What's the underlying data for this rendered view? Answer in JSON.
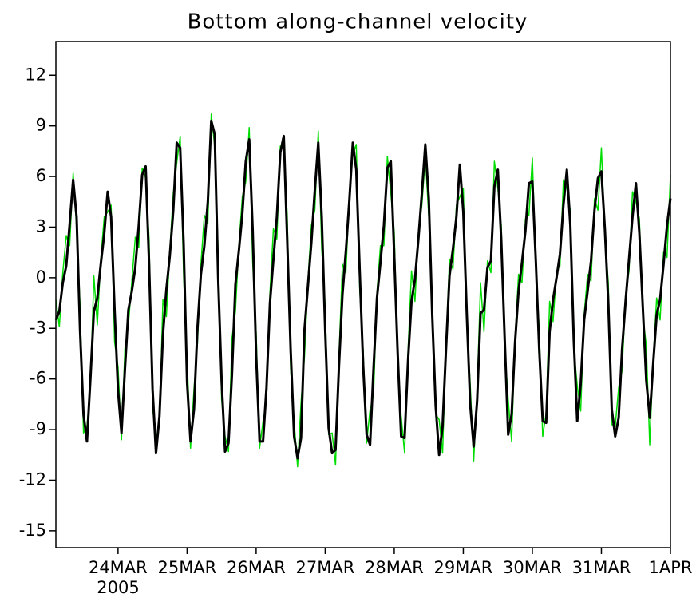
{
  "chart_data": {
    "type": "line",
    "title": "Bottom along-channel velocity",
    "x": [
      23.1,
      23.15,
      23.2,
      23.25,
      23.3,
      23.35,
      23.4,
      23.45,
      23.5,
      23.55,
      23.6,
      23.65,
      23.7,
      23.75,
      23.8,
      23.85,
      23.9,
      23.95,
      24.0,
      24.05,
      24.1,
      24.15,
      24.2,
      24.25,
      24.3,
      24.35,
      24.4,
      24.45,
      24.5,
      24.55,
      24.6,
      24.65,
      24.7,
      24.75,
      24.8,
      24.85,
      24.9,
      24.95,
      25.0,
      25.05,
      25.1,
      25.15,
      25.2,
      25.25,
      25.3,
      25.35,
      25.4,
      25.45,
      25.5,
      25.55,
      25.6,
      25.65,
      25.7,
      25.75,
      25.8,
      25.85,
      25.9,
      25.95,
      26.0,
      26.05,
      26.1,
      26.15,
      26.2,
      26.25,
      26.3,
      26.35,
      26.4,
      26.45,
      26.5,
      26.55,
      26.6,
      26.65,
      26.7,
      26.75,
      26.8,
      26.85,
      26.9,
      26.95,
      27.0,
      27.05,
      27.1,
      27.15,
      27.2,
      27.25,
      27.3,
      27.35,
      27.4,
      27.45,
      27.5,
      27.55,
      27.6,
      27.65,
      27.7,
      27.75,
      27.8,
      27.85,
      27.9,
      27.95,
      28.0,
      28.05,
      28.1,
      28.15,
      28.2,
      28.25,
      28.3,
      28.35,
      28.4,
      28.45,
      28.5,
      28.55,
      28.6,
      28.65,
      28.7,
      28.75,
      28.8,
      28.85,
      28.9,
      28.95,
      29.0,
      29.05,
      29.1,
      29.15,
      29.2,
      29.25,
      29.3,
      29.35,
      29.4,
      29.45,
      29.5,
      29.55,
      29.6,
      29.65,
      29.7,
      29.75,
      29.8,
      29.85,
      29.9,
      29.95,
      30.0,
      30.05,
      30.1,
      30.15,
      30.2,
      30.25,
      30.3,
      30.35,
      30.4,
      30.45,
      30.5,
      30.55,
      30.6,
      30.65,
      30.7,
      30.75,
      30.8,
      30.85,
      30.9,
      30.95,
      31.0,
      31.05,
      31.1,
      31.15,
      31.2,
      31.25,
      31.3,
      31.35,
      31.4,
      31.45,
      31.5,
      31.55,
      31.6,
      31.65,
      31.7,
      31.75,
      31.8,
      31.85,
      31.9,
      31.95,
      32.0
    ],
    "series": [
      {
        "color": "#00dd00",
        "values": [
          -1.3,
          -2.9,
          0.3,
          2.5,
          1.9,
          6.2,
          2.9,
          -1.6,
          -9.2,
          -8.8,
          -6.5,
          0.1,
          -2.8,
          1.1,
          3.6,
          3.9,
          4.3,
          -3.8,
          -5.3,
          -9.6,
          -4.2,
          -2.8,
          -0.2,
          2.4,
          1.8,
          6.5,
          5.9,
          2.3,
          -7.7,
          -9.5,
          -8.7,
          -1.3,
          -2.3,
          1.6,
          5,
          6.8,
          8.4,
          0.1,
          -4.8,
          -10.1,
          -6.6,
          -3.9,
          0.8,
          3.7,
          3.2,
          9.7,
          7.8,
          1.5,
          -7.2,
          -9.4,
          -10.3,
          -3.6,
          -2,
          1.9,
          4.8,
          5.7,
          8.9,
          0.9,
          -3.2,
          -10.1,
          -8.5,
          -7.4,
          -0.9,
          2.9,
          2.3,
          7.8,
          7.7,
          3.7,
          -5.4,
          -8.5,
          -11.2,
          -7.4,
          -4.7,
          -0.2,
          3.1,
          4,
          8.7,
          1.7,
          -1.7,
          -9.3,
          -9.2,
          -11.1,
          -4.6,
          0.8,
          0.3,
          5,
          7.3,
          7.9,
          -0.7,
          -4.3,
          -9.8,
          -7.8,
          -7,
          -0.9,
          1.9,
          1.9,
          7.2,
          5,
          2.7,
          -4.9,
          -8.2,
          -10.4,
          -4.3,
          0.4,
          -1.4,
          2.7,
          4.3,
          7.2,
          3.6,
          -1.3,
          -8.1,
          -8.4,
          -10.4,
          -3.9,
          1.1,
          0.5,
          4.3,
          4.8,
          5.3,
          -2.5,
          -6.3,
          -10.9,
          -6.7,
          -0.3,
          -3.2,
          1,
          0.3,
          6.9,
          5.3,
          3.1,
          -4.2,
          -7.2,
          -9.7,
          -3.5,
          0.2,
          -0.3,
          3.5,
          3.7,
          7.1,
          0.6,
          -3.1,
          -9.4,
          -8,
          -1.4,
          -2.6,
          0.4,
          0.7,
          5.8,
          5.3,
          4,
          -4.2,
          -6.4,
          -7.9,
          -2.2,
          0.2,
          -0.2,
          4.7,
          4,
          7.7,
          2.5,
          -0.3,
          -8.7,
          -8.8,
          -6.5,
          -5.5,
          -1,
          0.4,
          5.1,
          4.5,
          3.5,
          -2.3,
          -4,
          -9.9,
          -4.8,
          -1.2,
          -2.5,
          1.5,
          1.2,
          6.1
        ]
      },
      {
        "color": "#000000",
        "values": [
          -2.5,
          -2.0,
          -0.3,
          0.7,
          3.2,
          5.8,
          3.6,
          -3.1,
          -8.1,
          -9.7,
          -6,
          -2,
          -1.2,
          0.8,
          2.6,
          5.1,
          3.6,
          -1.9,
          -6.7,
          -9.2,
          -5.4,
          -1.9,
          -0.8,
          0.6,
          3.1,
          6.1,
          6.6,
          0.8,
          -6.6,
          -10.4,
          -8.2,
          -3.4,
          -0.7,
          1.3,
          4,
          8,
          7.7,
          2,
          -6.2,
          -9.7,
          -7.8,
          -3,
          0.2,
          1.9,
          4.5,
          9.3,
          8.5,
          0,
          -6.1,
          -10.3,
          -9.8,
          -5.7,
          -0.4,
          1.6,
          3.8,
          6.9,
          8.2,
          2.8,
          -4.6,
          -9.7,
          -9.7,
          -6.5,
          -1.5,
          1.1,
          3.6,
          7.4,
          8.4,
          2.2,
          -4.3,
          -9.4,
          -10.7,
          -9.5,
          -3.1,
          -0.5,
          2.1,
          5.2,
          8,
          3.6,
          -3.1,
          -8.9,
          -10.4,
          -10.2,
          -5.2,
          -1,
          1.6,
          4.6,
          8,
          6.4,
          0.4,
          -5.2,
          -9.3,
          -9.9,
          -5.4,
          -1.2,
          0.9,
          3.1,
          6.5,
          6.9,
          1.3,
          -4.5,
          -9.4,
          -9.5,
          -4.9,
          -1.4,
          -0.1,
          2.3,
          5,
          7.9,
          4.7,
          -2.2,
          -7.6,
          -10.5,
          -8.8,
          -4.2,
          0.1,
          1.7,
          3.6,
          6.7,
          3.9,
          -2.1,
          -7.5,
          -10,
          -7.3,
          -2.1,
          -1.9,
          0.6,
          1,
          5.4,
          6.4,
          2.2,
          -3.7,
          -9.3,
          -8.1,
          -3.8,
          -0.8,
          0.9,
          2.8,
          5.6,
          5.7,
          1,
          -4.3,
          -8.5,
          -8.6,
          -3.2,
          -1.3,
          0,
          1.4,
          4.3,
          6.4,
          3.1,
          -3.7,
          -8.5,
          -6.3,
          -2.5,
          -0.8,
          1,
          4,
          5.9,
          6.3,
          2.9,
          -1.5,
          -7.8,
          -9.4,
          -8.3,
          -4.2,
          -1.4,
          1.1,
          3.6,
          5.6,
          2.6,
          -1.8,
          -6.1,
          -8.3,
          -5.1,
          -2.2,
          -1.3,
          0.8,
          3.1,
          4.7
        ]
      }
    ],
    "xlim": [
      23.1,
      32
    ],
    "xticks": [
      {
        "value": 24,
        "label": "24MAR"
      },
      {
        "value": 25,
        "label": "25MAR"
      },
      {
        "value": 26,
        "label": "26MAR"
      },
      {
        "value": 27,
        "label": "27MAR"
      },
      {
        "value": 28,
        "label": "28MAR"
      },
      {
        "value": 29,
        "label": "29MAR"
      },
      {
        "value": 30,
        "label": "30MAR"
      },
      {
        "value": 31,
        "label": "31MAR"
      },
      {
        "value": 32,
        "label": "1APR"
      }
    ],
    "x_year_label": "2005",
    "ylim": [
      -16,
      14
    ],
    "yticks": [
      -15,
      -12,
      -9,
      -6,
      -3,
      0,
      3,
      6,
      9,
      12
    ]
  }
}
